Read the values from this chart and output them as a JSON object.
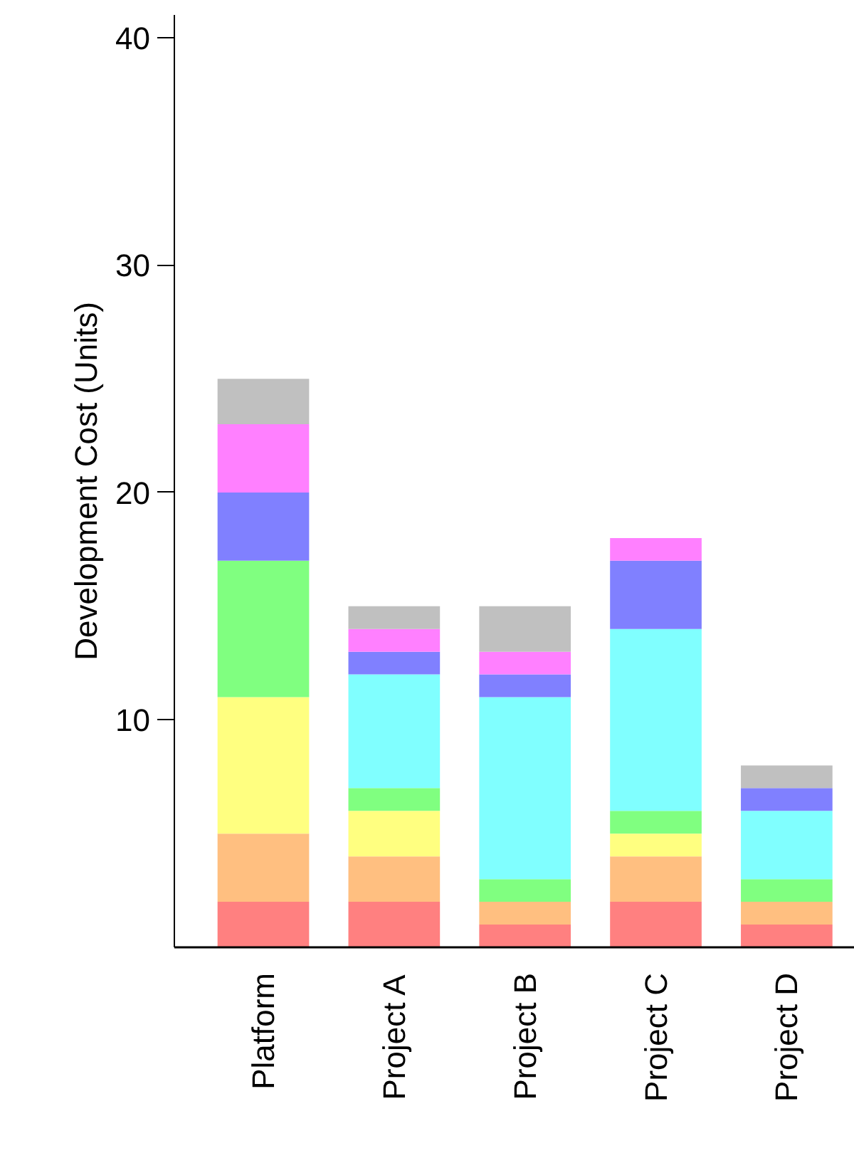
{
  "chart_data": {
    "type": "bar",
    "stacked": true,
    "ylabel": "Development Cost (Units)",
    "categories": [
      "Platform",
      "Project A",
      "Project B",
      "Project C",
      "Project D"
    ],
    "series": [
      {
        "color": "#ff8080",
        "values": [
          2,
          2,
          1,
          2,
          1
        ]
      },
      {
        "color": "#ffbf80",
        "values": [
          3,
          2,
          1,
          2,
          1
        ]
      },
      {
        "color": "#ffff80",
        "values": [
          6,
          2,
          0,
          1,
          0
        ]
      },
      {
        "color": "#80ff80",
        "values": [
          6,
          1,
          1,
          1,
          1
        ]
      },
      {
        "color": "#80ffff",
        "values": [
          0,
          5,
          8,
          8,
          3
        ]
      },
      {
        "color": "#8080ff",
        "values": [
          3,
          1,
          1,
          3,
          1
        ]
      },
      {
        "color": "#ff80ff",
        "values": [
          3,
          1,
          1,
          1,
          0
        ]
      },
      {
        "color": "#c0c0c0",
        "values": [
          2,
          1,
          2,
          0,
          1
        ]
      }
    ],
    "ylim": [
      0,
      41
    ],
    "yticks": [
      10,
      20,
      30,
      40
    ],
    "grid": false
  }
}
